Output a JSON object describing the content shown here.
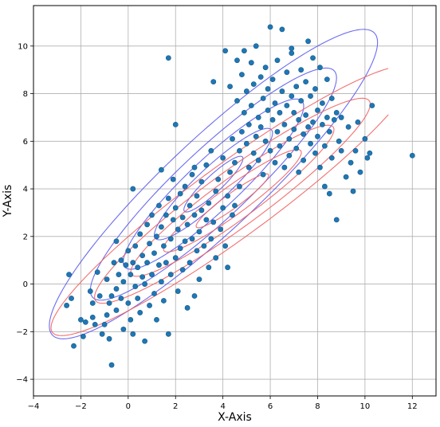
{
  "chart_data": {
    "type": "scatter",
    "title": "",
    "xlabel": "X-Axis",
    "ylabel": "Y-Axis",
    "xlim": [
      -4,
      13
    ],
    "ylim": [
      -4.7,
      11.7
    ],
    "xticks": [
      -4,
      -2,
      0,
      2,
      4,
      6,
      8,
      10,
      12
    ],
    "yticks": [
      -4,
      -2,
      0,
      2,
      4,
      6,
      8,
      10
    ],
    "grid": true,
    "legend": "none",
    "colors": {
      "points": "#1f77b4",
      "points_edge": "#155a8a",
      "ellipses_blue": "#5b5bf0",
      "ellipses_red": "#f26060",
      "grid": "#b0b0b0"
    },
    "points": [
      [
        -2.6,
        -0.9
      ],
      [
        -2.5,
        0.4
      ],
      [
        -2.4,
        -0.6
      ],
      [
        -2.3,
        -2.6
      ],
      [
        -2.0,
        -1.5
      ],
      [
        -1.9,
        -2.2
      ],
      [
        -1.8,
        -1.6
      ],
      [
        -1.6,
        -0.3
      ],
      [
        -1.5,
        -1.4
      ],
      [
        -1.5,
        -0.8
      ],
      [
        -1.4,
        -1.7
      ],
      [
        -1.3,
        0.5
      ],
      [
        -1.2,
        -0.5
      ],
      [
        -1.1,
        -2.1
      ],
      [
        -1.0,
        -1.7
      ],
      [
        -0.9,
        -1.3
      ],
      [
        -0.9,
        0.2
      ],
      [
        -0.8,
        -0.8
      ],
      [
        -0.8,
        -2.3
      ],
      [
        -0.7,
        -3.4
      ],
      [
        -0.7,
        -0.5
      ],
      [
        -0.6,
        0.9
      ],
      [
        -0.5,
        -0.2
      ],
      [
        -0.5,
        -1.1
      ],
      [
        -0.4,
        0.4
      ],
      [
        -0.3,
        -0.6
      ],
      [
        -0.3,
        1.0
      ],
      [
        -0.2,
        -1.9
      ],
      [
        -0.2,
        0.1
      ],
      [
        -0.1,
        0.8
      ],
      [
        0.0,
        -0.8
      ],
      [
        0.0,
        1.4
      ],
      [
        0.1,
        -1.5
      ],
      [
        0.1,
        0.4
      ],
      [
        0.2,
        -2.1
      ],
      [
        0.2,
        0.9
      ],
      [
        0.3,
        1.6
      ],
      [
        0.3,
        -0.1
      ],
      [
        0.4,
        0.7
      ],
      [
        0.4,
        -0.6
      ],
      [
        0.5,
        2.1
      ],
      [
        0.5,
        -1.2
      ],
      [
        0.6,
        0.3
      ],
      [
        0.6,
        1.2
      ],
      [
        0.7,
        -2.4
      ],
      [
        0.7,
        0.0
      ],
      [
        0.8,
        2.5
      ],
      [
        0.8,
        0.9
      ],
      [
        0.9,
        -0.9
      ],
      [
        0.9,
        1.7
      ],
      [
        1.0,
        0.4
      ],
      [
        1.0,
        2.9
      ],
      [
        1.1,
        -0.4
      ],
      [
        1.1,
        1.3
      ],
      [
        1.2,
        2.0
      ],
      [
        1.2,
        -1.5
      ],
      [
        1.3,
        0.8
      ],
      [
        1.3,
        3.3
      ],
      [
        1.4,
        0.1
      ],
      [
        1.4,
        2.4
      ],
      [
        1.5,
        1.6
      ],
      [
        1.5,
        -0.7
      ],
      [
        1.6,
        2.9
      ],
      [
        1.6,
        0.9
      ],
      [
        1.7,
        3.6
      ],
      [
        1.7,
        -2.1
      ],
      [
        1.8,
        1.9
      ],
      [
        1.8,
        0.4
      ],
      [
        1.9,
        2.7
      ],
      [
        1.9,
        4.4
      ],
      [
        2.0,
        1.1
      ],
      [
        2.0,
        3.2
      ],
      [
        2.1,
        -0.3
      ],
      [
        2.1,
        2.3
      ],
      [
        2.2,
        1.5
      ],
      [
        2.2,
        3.8
      ],
      [
        2.3,
        0.6
      ],
      [
        2.3,
        2.8
      ],
      [
        2.4,
        4.1
      ],
      [
        2.4,
        1.8
      ],
      [
        2.5,
        -1.0
      ],
      [
        2.5,
        2.5
      ],
      [
        2.6,
        3.3
      ],
      [
        2.6,
        0.9
      ],
      [
        2.7,
        1.9
      ],
      [
        2.7,
        4.6
      ],
      [
        2.8,
        2.9
      ],
      [
        2.8,
        -0.5
      ],
      [
        2.9,
        1.4
      ],
      [
        2.9,
        3.7
      ],
      [
        3.0,
        2.2
      ],
      [
        3.0,
        0.2
      ],
      [
        3.1,
        3.1
      ],
      [
        3.1,
        4.3
      ],
      [
        3.2,
        1.6
      ],
      [
        3.3,
        2.7
      ],
      [
        3.3,
        5.0
      ],
      [
        3.4,
        0.7
      ],
      [
        3.4,
        3.4
      ],
      [
        3.5,
        1.9
      ],
      [
        3.6,
        2.6
      ],
      [
        3.6,
        8.5
      ],
      [
        3.7,
        3.9
      ],
      [
        3.7,
        1.1
      ],
      [
        3.8,
        4.4
      ],
      [
        3.9,
        2.3
      ],
      [
        4.0,
        3.2
      ],
      [
        4.0,
        5.3
      ],
      [
        4.1,
        1.6
      ],
      [
        4.1,
        9.8
      ],
      [
        4.2,
        3.7
      ],
      [
        4.2,
        0.7
      ],
      [
        4.3,
        8.3
      ],
      [
        4.3,
        4.7
      ],
      [
        4.4,
        2.9
      ],
      [
        4.4,
        6.1
      ],
      [
        4.5,
        5.1
      ],
      [
        4.5,
        3.3
      ],
      [
        4.6,
        7.7
      ],
      [
        4.6,
        9.4
      ],
      [
        4.7,
        5.6
      ],
      [
        4.7,
        4.1
      ],
      [
        4.8,
        8.8
      ],
      [
        4.8,
        6.4
      ],
      [
        4.9,
        7.2
      ],
      [
        4.9,
        9.8
      ],
      [
        5.0,
        5.9
      ],
      [
        5.0,
        8.1
      ],
      [
        5.1,
        6.7
      ],
      [
        5.1,
        4.9
      ],
      [
        5.2,
        9.3
      ],
      [
        5.2,
        7.5
      ],
      [
        5.3,
        5.5
      ],
      [
        5.3,
        8.4
      ],
      [
        5.4,
        6.2
      ],
      [
        5.4,
        10.0
      ],
      [
        5.5,
        7.0
      ],
      [
        5.5,
        5.2
      ],
      [
        5.6,
        8.7
      ],
      [
        5.6,
        6.6
      ],
      [
        5.7,
        7.8
      ],
      [
        5.7,
        4.6
      ],
      [
        5.8,
        9.1
      ],
      [
        5.8,
        6.0
      ],
      [
        5.9,
        7.3
      ],
      [
        5.9,
        8.2
      ],
      [
        6.0,
        5.6
      ],
      [
        6.0,
        10.8
      ],
      [
        6.1,
        6.9
      ],
      [
        6.1,
        8.6
      ],
      [
        6.2,
        5.1
      ],
      [
        6.2,
        7.6
      ],
      [
        6.3,
        6.4
      ],
      [
        6.3,
        9.4
      ],
      [
        6.4,
        7.2
      ],
      [
        6.4,
        5.8
      ],
      [
        6.5,
        8.1
      ],
      [
        6.5,
        10.7
      ],
      [
        6.6,
        6.7
      ],
      [
        6.6,
        4.9
      ],
      [
        6.7,
        7.5
      ],
      [
        6.7,
        8.9
      ],
      [
        6.8,
        6.1
      ],
      [
        6.8,
        5.4
      ],
      [
        6.9,
        7.9
      ],
      [
        6.9,
        9.7
      ],
      [
        7.0,
        6.5
      ],
      [
        7.0,
        7.2
      ],
      [
        7.1,
        5.7
      ],
      [
        7.1,
        8.3
      ],
      [
        7.2,
        6.9
      ],
      [
        7.2,
        4.7
      ],
      [
        7.3,
        7.7
      ],
      [
        7.3,
        9.0
      ],
      [
        7.4,
        6.3
      ],
      [
        7.4,
        5.2
      ],
      [
        7.5,
        8.5
      ],
      [
        7.5,
        7.1
      ],
      [
        7.6,
        6.6
      ],
      [
        7.6,
        10.2
      ],
      [
        7.7,
        5.9
      ],
      [
        7.7,
        7.9
      ],
      [
        7.8,
        9.5
      ],
      [
        7.8,
        6.8
      ],
      [
        7.9,
        5.5
      ],
      [
        7.9,
        8.2
      ],
      [
        8.0,
        7.3
      ],
      [
        8.0,
        6.2
      ],
      [
        8.1,
        9.1
      ],
      [
        8.1,
        4.9
      ],
      [
        8.2,
        6.7
      ],
      [
        8.2,
        7.6
      ],
      [
        8.3,
        4.1
      ],
      [
        8.3,
        5.8
      ],
      [
        8.4,
        7.0
      ],
      [
        8.4,
        8.6
      ],
      [
        8.5,
        6.4
      ],
      [
        8.5,
        3.8
      ],
      [
        8.6,
        7.8
      ],
      [
        8.6,
        5.3
      ],
      [
        8.7,
        6.9
      ],
      [
        8.8,
        2.7
      ],
      [
        8.8,
        7.2
      ],
      [
        8.9,
        6.0
      ],
      [
        9.0,
        5.6
      ],
      [
        9.0,
        7.0
      ],
      [
        9.2,
        4.5
      ],
      [
        9.3,
        6.6
      ],
      [
        9.4,
        5.1
      ],
      [
        9.5,
        3.9
      ],
      [
        9.6,
        5.6
      ],
      [
        9.7,
        6.8
      ],
      [
        9.8,
        4.7
      ],
      [
        10.0,
        6.1
      ],
      [
        10.1,
        5.3
      ],
      [
        10.2,
        5.5
      ],
      [
        10.3,
        7.5
      ],
      [
        12.0,
        5.4
      ],
      [
        1.7,
        9.5
      ],
      [
        2.0,
        6.7
      ],
      [
        0.2,
        4.0
      ],
      [
        -0.5,
        1.8
      ],
      [
        1.4,
        4.8
      ],
      [
        2.8,
        4.9
      ],
      [
        3.5,
        5.6
      ],
      [
        6.9,
        9.9
      ]
    ]
  }
}
